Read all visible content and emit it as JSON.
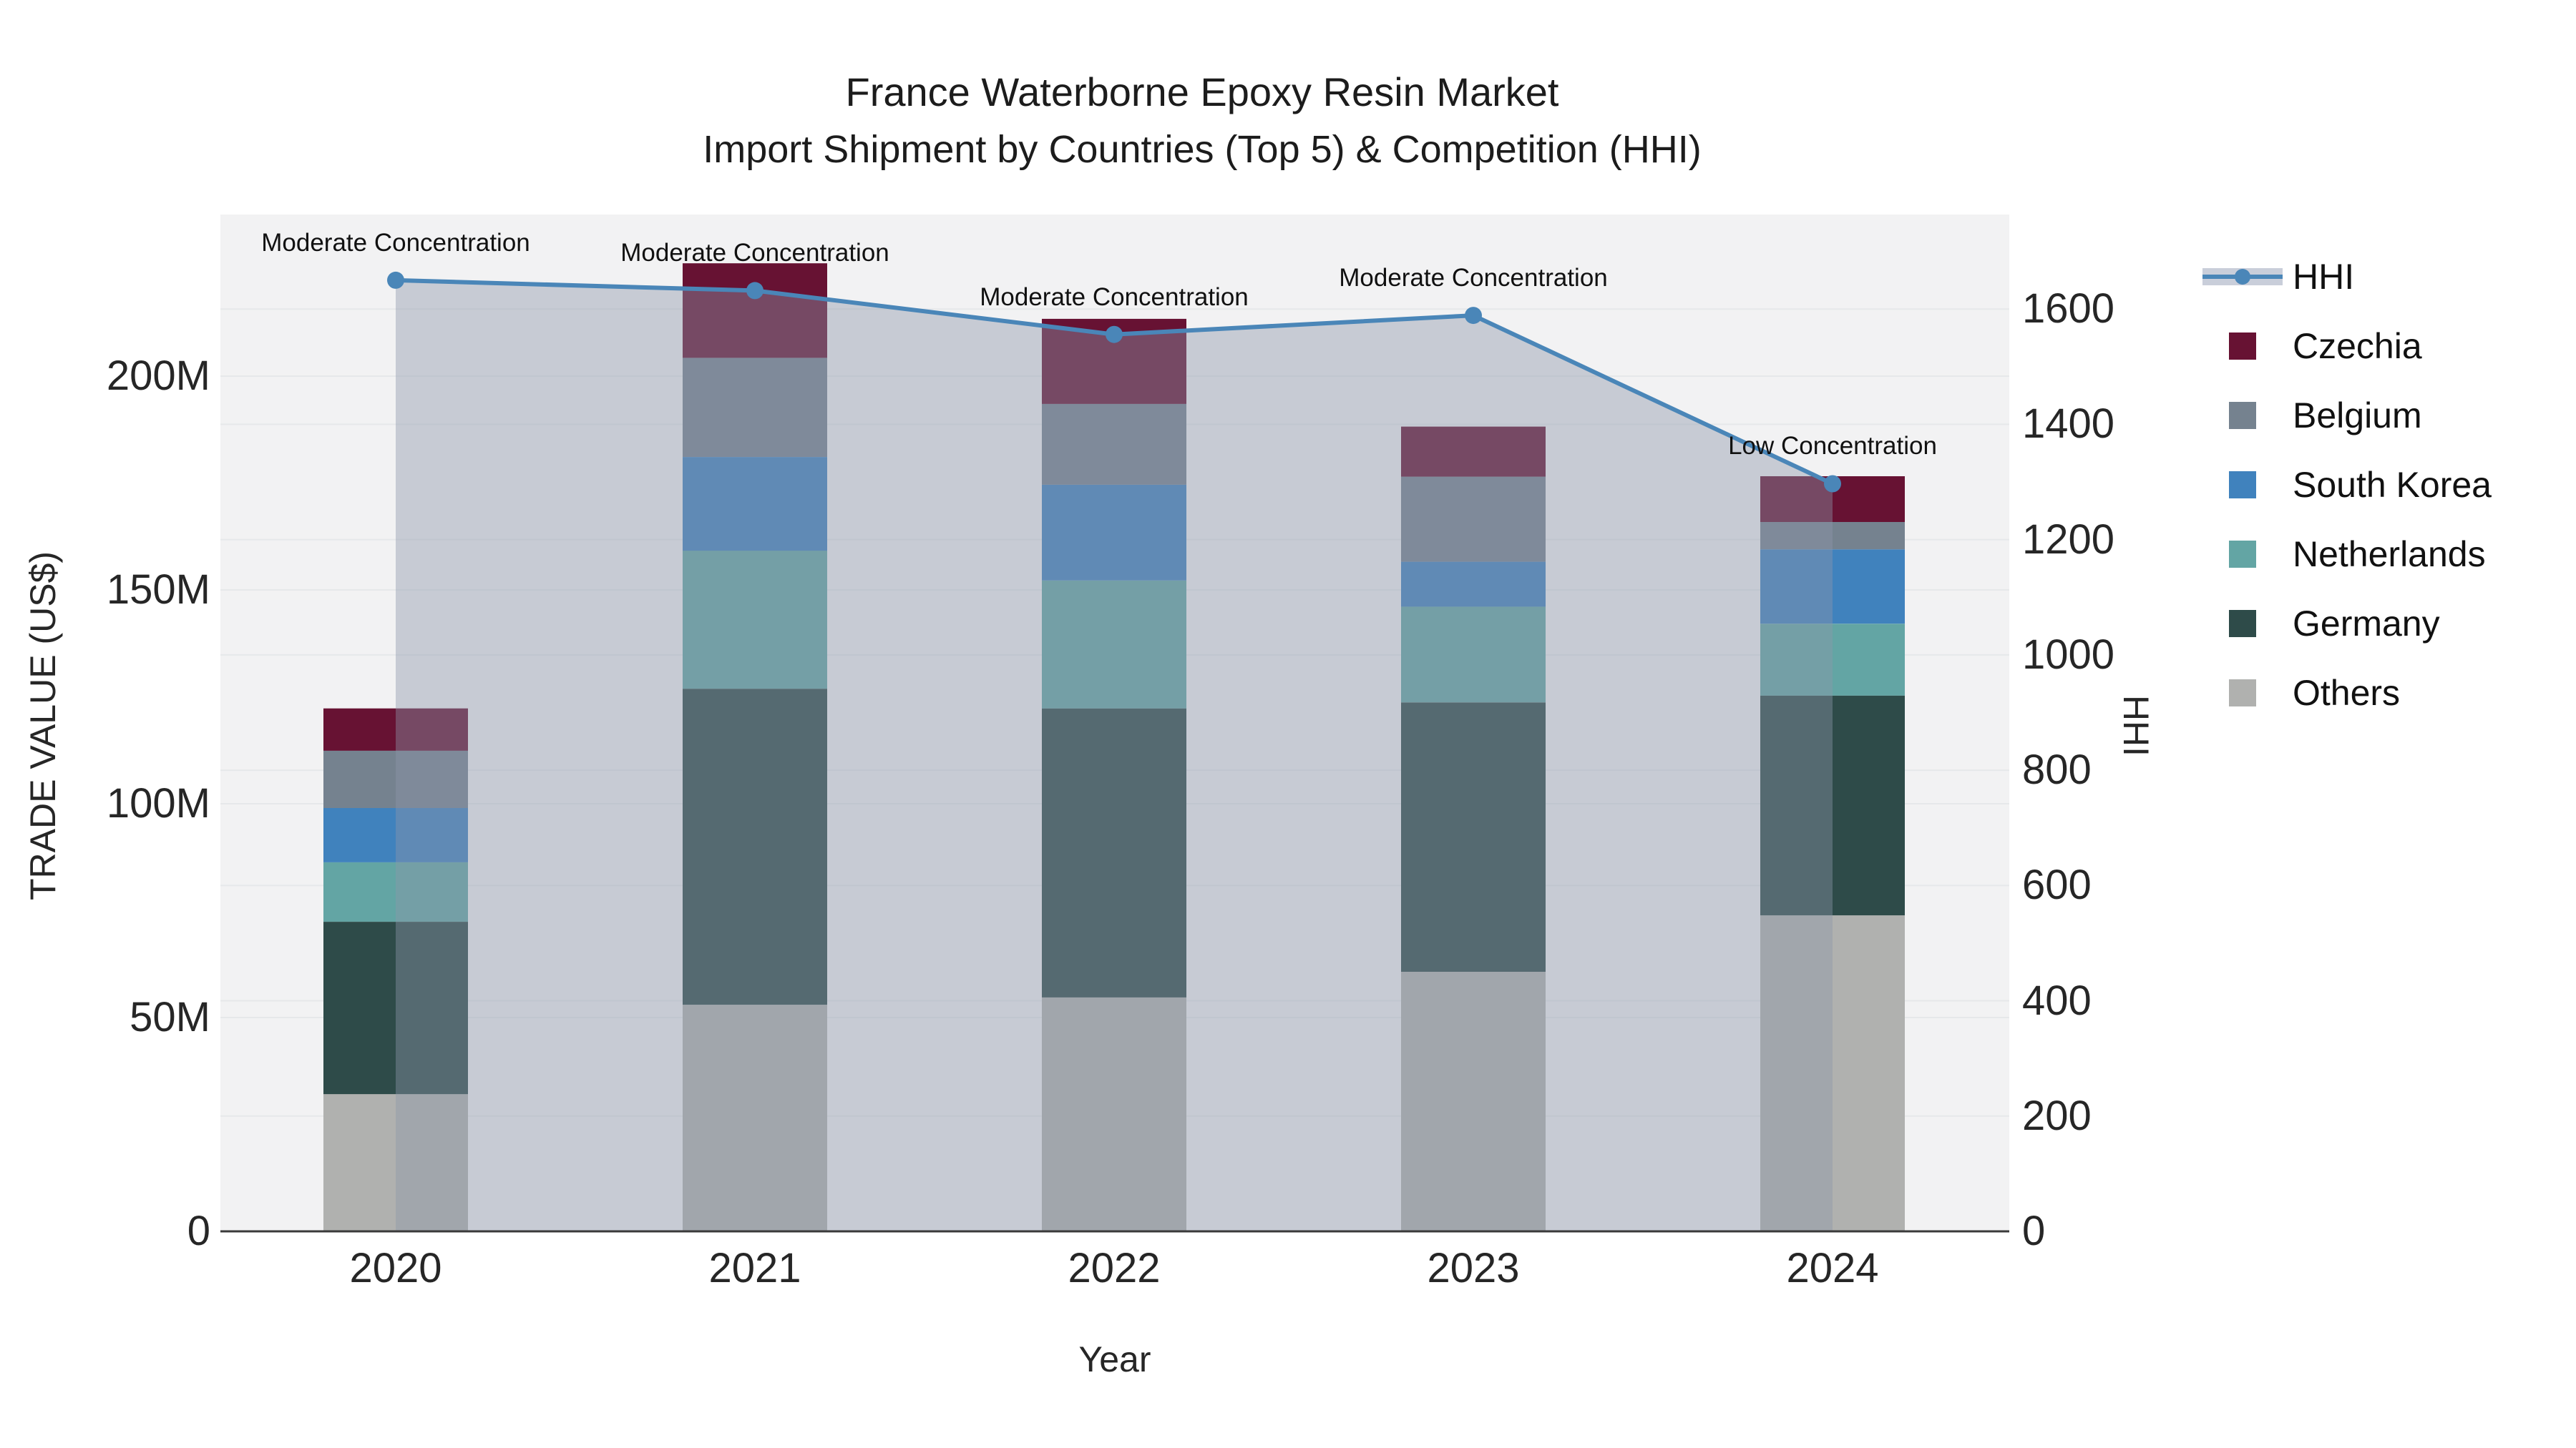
{
  "title": {
    "line1": "France Waterborne Epoxy Resin Market",
    "line2": "Import Shipment by Countries (Top 5) & Competition (HHI)"
  },
  "chart_data": {
    "type": "bar+line",
    "title": "France Waterborne Epoxy Resin Market - Import Shipment by Countries (Top 5) & Competition (HHI)",
    "xlabel": "Year",
    "ylabel": "TRADE VALUE (US$)",
    "y2label": "HHI",
    "categories": [
      "2020",
      "2021",
      "2022",
      "2023",
      "2024"
    ],
    "stack_note": "series listed bottom-to-top; values in millions US$",
    "series": [
      {
        "name": "Others",
        "color": "#b0b1af",
        "values": [
          32.1,
          53.0,
          54.7,
          60.7,
          73.9
        ]
      },
      {
        "name": "Germany",
        "color": "#2e4b49",
        "values": [
          40.3,
          73.9,
          67.6,
          63.0,
          51.4
        ]
      },
      {
        "name": "Netherlands",
        "color": "#63a5a4",
        "values": [
          13.9,
          32.3,
          29.9,
          22.4,
          16.8
        ]
      },
      {
        "name": "South Korea",
        "color": "#4082bd",
        "values": [
          12.7,
          21.9,
          22.4,
          10.5,
          17.4
        ]
      },
      {
        "name": "Belgium",
        "color": "#75828f",
        "values": [
          13.4,
          23.2,
          18.9,
          19.9,
          6.4
        ]
      },
      {
        "name": "Czechia",
        "color": "#671233",
        "values": [
          9.9,
          22.1,
          19.9,
          11.7,
          10.7
        ]
      }
    ],
    "line_series": {
      "name": "HHI",
      "color": "#4a86b8",
      "area_fill": "rgba(140,150,170,0.42)",
      "values": [
        1650,
        1632,
        1556,
        1589,
        1297
      ]
    },
    "annotations": [
      {
        "category": "2020",
        "text": "Moderate Concentration"
      },
      {
        "category": "2021",
        "text": "Moderate Concentration"
      },
      {
        "category": "2022",
        "text": "Moderate Concentration"
      },
      {
        "category": "2023",
        "text": "Moderate Concentration"
      },
      {
        "category": "2024",
        "text": "Low Concentration"
      }
    ],
    "yticks": {
      "labels": [
        "0",
        "50M",
        "100M",
        "150M",
        "200M"
      ],
      "values": [
        0,
        50,
        100,
        150,
        200
      ]
    },
    "y2ticks": {
      "labels": [
        "0",
        "200",
        "400",
        "600",
        "800",
        "1000",
        "1200",
        "1400",
        "1600"
      ],
      "values": [
        0,
        200,
        400,
        600,
        800,
        1000,
        1200,
        1400,
        1600
      ]
    },
    "ylim": [
      0,
      237.8
    ],
    "y2lim": [
      0,
      1764
    ],
    "grid": true,
    "legend_position": "right",
    "colors": {
      "plot_bg": "#f2f2f3",
      "gridline": "#e6e8ea",
      "axis_line": "#3a3a3a"
    }
  },
  "legend": {
    "items": [
      {
        "label": "HHI",
        "type": "line",
        "color": "#4a86b8"
      },
      {
        "label": "Czechia",
        "type": "square",
        "color": "#671233"
      },
      {
        "label": "Belgium",
        "type": "square",
        "color": "#75828f"
      },
      {
        "label": "South Korea",
        "type": "square",
        "color": "#4082bd"
      },
      {
        "label": "Netherlands",
        "type": "square",
        "color": "#63a5a4"
      },
      {
        "label": "Germany",
        "type": "square",
        "color": "#2e4b49"
      },
      {
        "label": "Others",
        "type": "square",
        "color": "#b0b1af"
      }
    ]
  }
}
